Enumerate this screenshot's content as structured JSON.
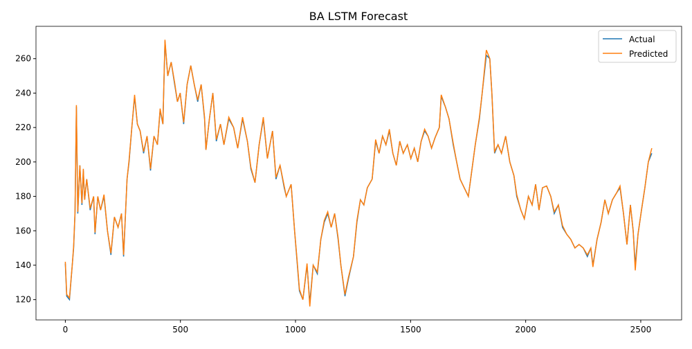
{
  "chart_data": {
    "type": "line",
    "title": "BA LSTM Forecast",
    "x": [
      0,
      6,
      18,
      30,
      36,
      42,
      48,
      54,
      63,
      72,
      78,
      84,
      93,
      108,
      123,
      129,
      141,
      153,
      168,
      183,
      198,
      213,
      229,
      244,
      253,
      268,
      277,
      289,
      301,
      313,
      325,
      340,
      355,
      370,
      385,
      400,
      412,
      424,
      433,
      445,
      460,
      475,
      487,
      499,
      514,
      529,
      545,
      560,
      575,
      590,
      605,
      611,
      626,
      641,
      656,
      674,
      689,
      710,
      731,
      749,
      770,
      791,
      806,
      824,
      842,
      860,
      878,
      900,
      915,
      933,
      951,
      960,
      981,
      996,
      1005,
      1017,
      1032,
      1050,
      1062,
      1077,
      1095,
      1110,
      1125,
      1140,
      1155,
      1170,
      1185,
      1197,
      1215,
      1230,
      1252,
      1267,
      1282,
      1297,
      1312,
      1333,
      1348,
      1363,
      1378,
      1393,
      1408,
      1423,
      1438,
      1453,
      1468,
      1486,
      1501,
      1516,
      1531,
      1546,
      1561,
      1576,
      1591,
      1606,
      1625,
      1633,
      1651,
      1667,
      1685,
      1700,
      1715,
      1733,
      1751,
      1766,
      1781,
      1799,
      1811,
      1829,
      1844,
      1853,
      1865,
      1880,
      1895,
      1913,
      1931,
      1949,
      1961,
      1979,
      1994,
      2012,
      2028,
      2043,
      2058,
      2073,
      2091,
      2109,
      2124,
      2142,
      2160,
      2178,
      2196,
      2214,
      2232,
      2250,
      2268,
      2283,
      2292,
      2310,
      2328,
      2344,
      2359,
      2377,
      2395,
      2410,
      2425,
      2440,
      2455,
      2467,
      2476,
      2488,
      2503,
      2518,
      2533,
      2548
    ],
    "series": [
      {
        "name": "Actual",
        "color": "#1f77b4",
        "values": [
          141,
          122,
          120,
          140,
          150,
          170,
          232,
          170,
          198,
          175,
          195,
          178,
          190,
          172,
          180,
          158,
          180,
          172,
          180,
          160,
          146,
          168,
          162,
          170,
          145,
          190,
          200,
          220,
          238,
          222,
          218,
          205,
          215,
          195,
          215,
          210,
          230,
          222,
          270,
          250,
          258,
          245,
          235,
          240,
          222,
          245,
          256,
          245,
          235,
          245,
          225,
          207,
          225,
          240,
          212,
          222,
          210,
          225,
          220,
          208,
          225,
          212,
          196,
          188,
          210,
          225,
          202,
          218,
          190,
          198,
          185,
          180,
          187,
          160,
          145,
          125,
          120,
          140,
          118,
          140,
          135,
          155,
          165,
          170,
          162,
          170,
          155,
          140,
          122,
          132,
          145,
          165,
          178,
          175,
          185,
          190,
          212,
          205,
          215,
          210,
          218,
          205,
          198,
          212,
          205,
          210,
          202,
          208,
          200,
          212,
          218,
          215,
          208,
          214,
          220,
          238,
          232,
          225,
          210,
          200,
          190,
          185,
          180,
          195,
          210,
          225,
          240,
          262,
          260,
          240,
          205,
          210,
          205,
          215,
          200,
          192,
          180,
          172,
          167,
          180,
          175,
          187,
          172,
          185,
          186,
          180,
          170,
          175,
          162,
          158,
          155,
          150,
          152,
          150,
          145,
          150,
          140,
          155,
          165,
          178,
          170,
          178,
          182,
          185,
          170,
          152,
          175,
          160,
          140,
          158,
          172,
          185,
          200,
          205
        ]
      },
      {
        "name": "Predicted",
        "color": "#ff7f0e",
        "values": [
          142,
          123,
          121,
          140,
          151,
          171,
          233,
          171,
          198,
          176,
          196,
          178,
          190,
          173,
          180,
          159,
          180,
          172,
          181,
          160,
          147,
          168,
          162,
          170,
          146,
          190,
          201,
          220,
          239,
          222,
          218,
          206,
          215,
          196,
          215,
          210,
          231,
          222,
          271,
          250,
          258,
          246,
          235,
          240,
          223,
          245,
          256,
          245,
          236,
          245,
          226,
          207,
          225,
          240,
          213,
          222,
          210,
          226,
          220,
          208,
          226,
          212,
          197,
          188,
          210,
          226,
          202,
          218,
          191,
          198,
          186,
          180,
          187,
          160,
          146,
          126,
          120,
          141,
          116,
          140,
          136,
          155,
          166,
          171,
          162,
          170,
          156,
          140,
          123,
          133,
          145,
          166,
          178,
          175,
          185,
          190,
          213,
          205,
          215,
          210,
          219,
          205,
          198,
          212,
          205,
          210,
          202,
          208,
          200,
          212,
          219,
          215,
          208,
          214,
          220,
          239,
          232,
          225,
          211,
          200,
          190,
          185,
          180,
          195,
          210,
          226,
          240,
          265,
          260,
          240,
          206,
          210,
          205,
          215,
          200,
          192,
          181,
          172,
          167,
          180,
          175,
          187,
          172,
          185,
          186,
          180,
          171,
          175,
          163,
          158,
          155,
          150,
          152,
          150,
          146,
          150,
          139,
          155,
          165,
          178,
          170,
          178,
          182,
          186,
          170,
          152,
          175,
          160,
          137,
          158,
          172,
          185,
          200,
          208
        ]
      }
    ],
    "xlim": [
      -127.5,
      2677.5
    ],
    "ylim": [
      108.2,
      278.8
    ],
    "xticks": [
      0,
      500,
      1000,
      1500,
      2000,
      2500
    ],
    "yticks": [
      120,
      140,
      160,
      180,
      200,
      220,
      240,
      260
    ],
    "grid": false,
    "legend": "upper right"
  }
}
